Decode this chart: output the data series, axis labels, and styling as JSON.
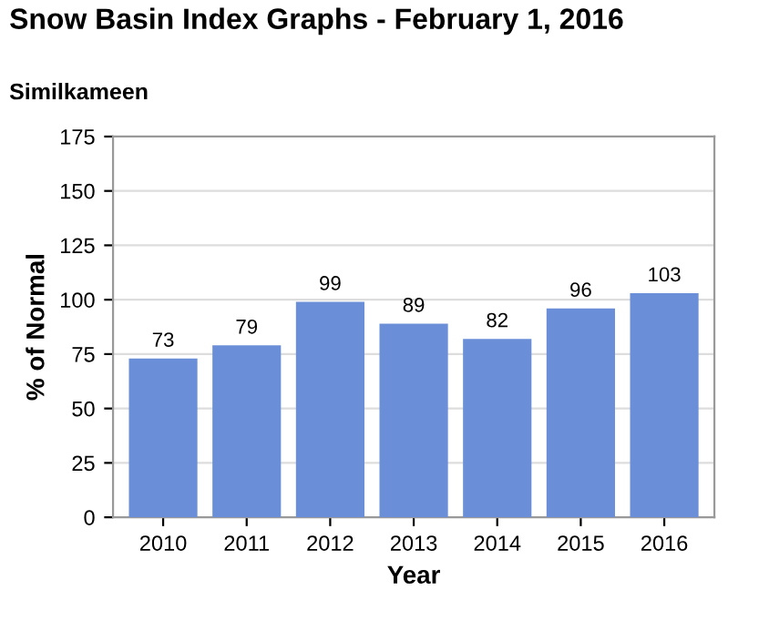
{
  "chart_data": {
    "type": "bar",
    "title": "Snow Basin Index Graphs - February 1, 2016",
    "subtitle": "Similkameen",
    "xlabel": "Year",
    "ylabel": "% of Normal",
    "categories": [
      "2010",
      "2011",
      "2012",
      "2013",
      "2014",
      "2015",
      "2016"
    ],
    "values": [
      73,
      79,
      99,
      89,
      82,
      96,
      103
    ],
    "color": "#6a8fd8",
    "ylim": [
      0,
      175
    ],
    "yticks": [
      0,
      25,
      50,
      75,
      100,
      125,
      150,
      175
    ],
    "grid": "y",
    "data_labels": true,
    "legend": false
  }
}
